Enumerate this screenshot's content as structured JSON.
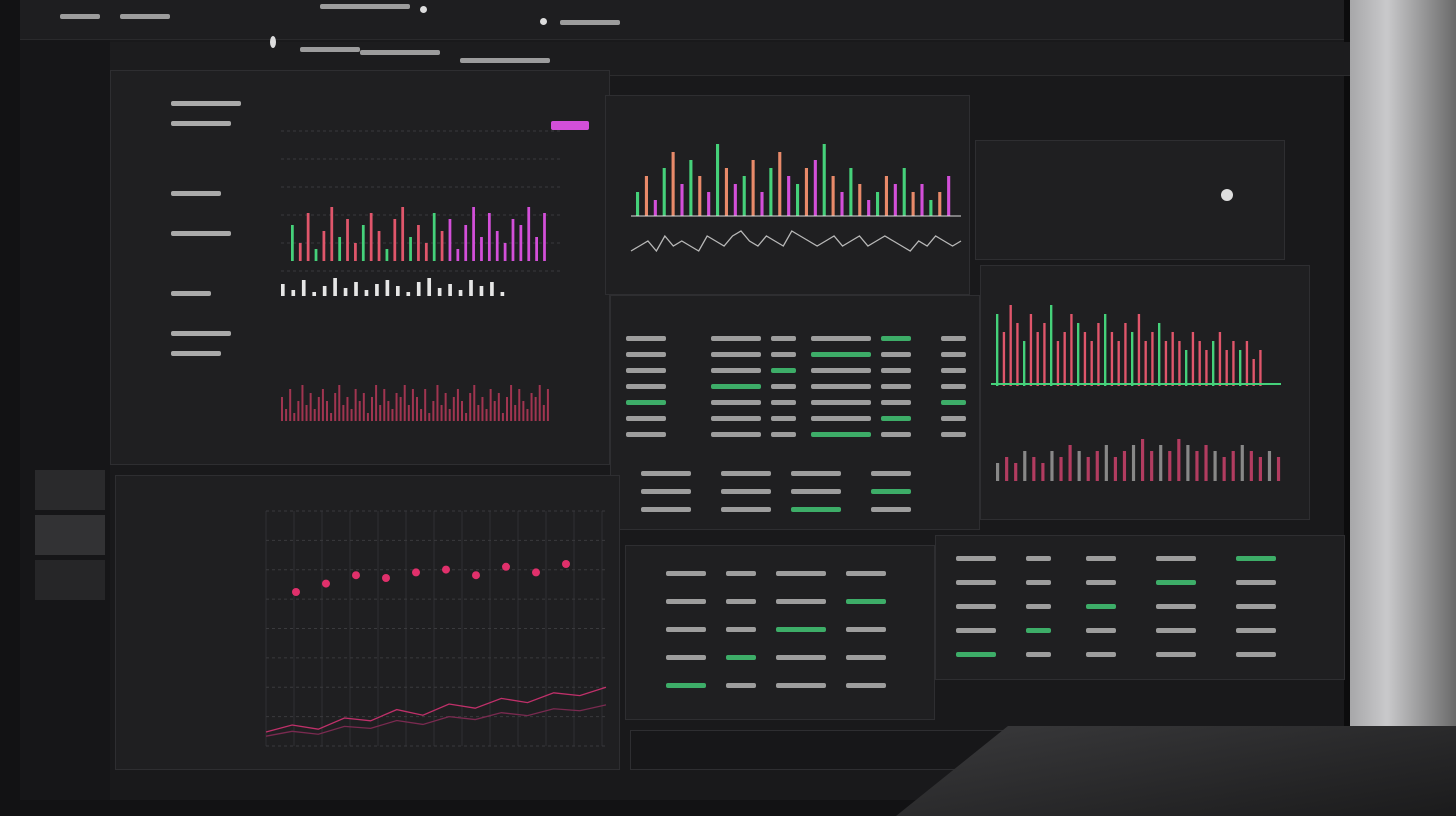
{
  "colors": {
    "background": "#19191b",
    "panel": "#1f1f21",
    "up": "#45d17a",
    "down": "#e0566b",
    "accent": "#d34fd9",
    "line": "#b8b8b8"
  },
  "icons": [
    "menu-icon",
    "settings-icon",
    "clock-icon",
    "status-dot-icon"
  ],
  "chart_data": [
    {
      "type": "bar",
      "values": [
        6,
        3,
        8,
        2,
        5,
        9,
        4,
        7,
        3,
        6,
        8,
        5,
        2,
        7,
        9,
        4,
        6,
        3,
        8,
        5,
        7,
        2,
        6,
        9,
        4,
        8,
        5,
        3,
        7,
        6,
        9,
        4,
        8
      ],
      "line": [
        4,
        5,
        4,
        6,
        5,
        4,
        6,
        7,
        5,
        6,
        5,
        4,
        6,
        7,
        8,
        6,
        5,
        7,
        6,
        5,
        6,
        7,
        5,
        6,
        4,
        5,
        6,
        5,
        4,
        5,
        6,
        5,
        4
      ]
    },
    {
      "type": "bar",
      "values": [
        3,
        5,
        2,
        6,
        8,
        4,
        7,
        5,
        3,
        9,
        6,
        4,
        5,
        7,
        3,
        6,
        8,
        5,
        4,
        6,
        7,
        9,
        5,
        3,
        6,
        4,
        2,
        3,
        5,
        4,
        6,
        3,
        4,
        2,
        3,
        5
      ],
      "bottom": [
        2,
        3,
        4,
        2,
        5,
        3,
        4,
        3,
        2,
        5,
        4,
        3,
        5,
        6,
        4,
        3,
        5,
        4,
        3,
        6,
        5,
        4,
        3,
        4,
        5,
        3,
        4,
        5,
        3,
        4,
        5,
        4,
        3,
        2,
        4,
        3,
        5,
        4,
        3,
        4
      ]
    },
    {
      "type": "scatter",
      "x": [
        1,
        2,
        3,
        4,
        5,
        6,
        7,
        8,
        9,
        10
      ],
      "y": [
        5.5,
        5.8,
        6.1,
        6.0,
        6.2,
        6.3,
        6.1,
        6.4,
        6.2,
        6.5
      ],
      "line": [
        1,
        1.5,
        1.2,
        2,
        1.8,
        2.6,
        2.2,
        3,
        2.7,
        3.4,
        3.1,
        3.8,
        3.6,
        4.2
      ]
    },
    {
      "type": "bar",
      "values": [
        8,
        6,
        9,
        7,
        5,
        8,
        6,
        7,
        9,
        5,
        6,
        8,
        7,
        6,
        5,
        7,
        8,
        6,
        5,
        7,
        6,
        8,
        5,
        6,
        7,
        5,
        6,
        5,
        4,
        6,
        5,
        4,
        5,
        6,
        4,
        5,
        4,
        5,
        3,
        4
      ],
      "bottom": [
        3,
        4,
        3,
        5,
        4,
        3,
        5,
        4,
        6,
        5,
        4,
        5,
        6,
        4,
        5,
        6,
        7,
        5,
        6,
        5,
        7,
        6,
        5,
        6,
        5,
        4,
        5,
        6,
        5,
        4,
        5,
        4
      ]
    }
  ]
}
